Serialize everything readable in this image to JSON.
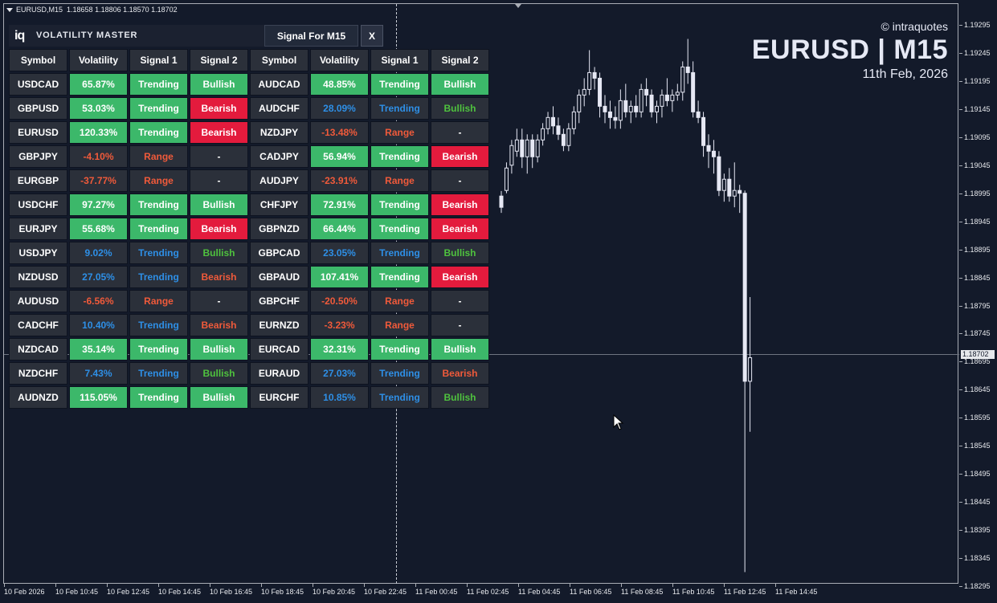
{
  "chart_info": {
    "symbol_timeframe": "EURUSD,M15",
    "ohlc": "1.18658 1.18806 1.18570 1.18702"
  },
  "watermark": {
    "copyright": "© intraquotes",
    "title": "EURUSD | M15",
    "date": "11th Feb, 2026"
  },
  "price_axis": {
    "labels": [
      "1.19295",
      "1.19245",
      "1.19195",
      "1.19145",
      "1.19095",
      "1.19045",
      "1.18995",
      "1.18945",
      "1.18895",
      "1.18845",
      "1.18795",
      "1.18745",
      "1.18695",
      "1.18645",
      "1.18595",
      "1.18545",
      "1.18495",
      "1.18445",
      "1.18395",
      "1.18345",
      "1.18295"
    ],
    "current_price": "1.18702"
  },
  "time_axis": {
    "labels": [
      "10 Feb 2026",
      "10 Feb 10:45",
      "10 Feb 12:45",
      "10 Feb 14:45",
      "10 Feb 16:45",
      "10 Feb 18:45",
      "10 Feb 20:45",
      "10 Feb 22:45",
      "11 Feb 00:45",
      "11 Feb 02:45",
      "11 Feb 04:45",
      "11 Feb 06:45",
      "11 Feb 08:45",
      "11 Feb 10:45",
      "11 Feb 12:45",
      "11 Feb 14:45"
    ]
  },
  "panel": {
    "logo": "iq",
    "title": "VOLATILITY MASTER",
    "signal_tab": "Signal For M15",
    "close_label": "X",
    "headers": [
      "Symbol",
      "Volatility",
      "Signal 1",
      "Signal 2",
      "Symbol",
      "Volatility",
      "Signal 1",
      "Signal 2"
    ],
    "rows": [
      [
        {
          "t": "USDCAD",
          "s": "sym"
        },
        {
          "t": "65.87%",
          "s": "g"
        },
        {
          "t": "Trending",
          "s": "g"
        },
        {
          "t": "Bullish",
          "s": "g"
        },
        {
          "t": "AUDCAD",
          "s": "sym"
        },
        {
          "t": "48.85%",
          "s": "g"
        },
        {
          "t": "Trending",
          "s": "g"
        },
        {
          "t": "Bullish",
          "s": "g"
        }
      ],
      [
        {
          "t": "GBPUSD",
          "s": "sym"
        },
        {
          "t": "53.03%",
          "s": "g"
        },
        {
          "t": "Trending",
          "s": "g"
        },
        {
          "t": "Bearish",
          "s": "r"
        },
        {
          "t": "AUDCHF",
          "s": "sym"
        },
        {
          "t": "28.09%",
          "s": "tb"
        },
        {
          "t": "Trending",
          "s": "tb"
        },
        {
          "t": "Bullish",
          "s": "tg"
        }
      ],
      [
        {
          "t": "EURUSD",
          "s": "sym"
        },
        {
          "t": "120.33%",
          "s": "g"
        },
        {
          "t": "Trending",
          "s": "g"
        },
        {
          "t": "Bearish",
          "s": "r"
        },
        {
          "t": "NZDJPY",
          "s": "sym"
        },
        {
          "t": "-13.48%",
          "s": "tr"
        },
        {
          "t": "Range",
          "s": "tr"
        },
        {
          "t": "-",
          "s": "tw"
        }
      ],
      [
        {
          "t": "GBPJPY",
          "s": "sym"
        },
        {
          "t": "-4.10%",
          "s": "tr"
        },
        {
          "t": "Range",
          "s": "tr"
        },
        {
          "t": "-",
          "s": "tw"
        },
        {
          "t": "CADJPY",
          "s": "sym"
        },
        {
          "t": "56.94%",
          "s": "g"
        },
        {
          "t": "Trending",
          "s": "g"
        },
        {
          "t": "Bearish",
          "s": "r"
        }
      ],
      [
        {
          "t": "EURGBP",
          "s": "sym"
        },
        {
          "t": "-37.77%",
          "s": "tr"
        },
        {
          "t": "Range",
          "s": "tr"
        },
        {
          "t": "-",
          "s": "tw"
        },
        {
          "t": "AUDJPY",
          "s": "sym"
        },
        {
          "t": "-23.91%",
          "s": "tr"
        },
        {
          "t": "Range",
          "s": "tr"
        },
        {
          "t": "-",
          "s": "tw"
        }
      ],
      [
        {
          "t": "USDCHF",
          "s": "sym"
        },
        {
          "t": "97.27%",
          "s": "g"
        },
        {
          "t": "Trending",
          "s": "g"
        },
        {
          "t": "Bullish",
          "s": "g"
        },
        {
          "t": "CHFJPY",
          "s": "sym"
        },
        {
          "t": "72.91%",
          "s": "g"
        },
        {
          "t": "Trending",
          "s": "g"
        },
        {
          "t": "Bearish",
          "s": "r"
        }
      ],
      [
        {
          "t": "EURJPY",
          "s": "sym"
        },
        {
          "t": "55.68%",
          "s": "g"
        },
        {
          "t": "Trending",
          "s": "g"
        },
        {
          "t": "Bearish",
          "s": "r"
        },
        {
          "t": "GBPNZD",
          "s": "sym"
        },
        {
          "t": "66.44%",
          "s": "g"
        },
        {
          "t": "Trending",
          "s": "g"
        },
        {
          "t": "Bearish",
          "s": "r"
        }
      ],
      [
        {
          "t": "USDJPY",
          "s": "sym"
        },
        {
          "t": "9.02%",
          "s": "tb"
        },
        {
          "t": "Trending",
          "s": "tb"
        },
        {
          "t": "Bullish",
          "s": "tg"
        },
        {
          "t": "GBPCAD",
          "s": "sym"
        },
        {
          "t": "23.05%",
          "s": "tb"
        },
        {
          "t": "Trending",
          "s": "tb"
        },
        {
          "t": "Bullish",
          "s": "tg"
        }
      ],
      [
        {
          "t": "NZDUSD",
          "s": "sym"
        },
        {
          "t": "27.05%",
          "s": "tb"
        },
        {
          "t": "Trending",
          "s": "tb"
        },
        {
          "t": "Bearish",
          "s": "tr"
        },
        {
          "t": "GBPAUD",
          "s": "sym"
        },
        {
          "t": "107.41%",
          "s": "g"
        },
        {
          "t": "Trending",
          "s": "g"
        },
        {
          "t": "Bearish",
          "s": "r"
        }
      ],
      [
        {
          "t": "AUDUSD",
          "s": "sym"
        },
        {
          "t": "-6.56%",
          "s": "tr"
        },
        {
          "t": "Range",
          "s": "tr"
        },
        {
          "t": "-",
          "s": "tw"
        },
        {
          "t": "GBPCHF",
          "s": "sym"
        },
        {
          "t": "-20.50%",
          "s": "tr"
        },
        {
          "t": "Range",
          "s": "tr"
        },
        {
          "t": "-",
          "s": "tw"
        }
      ],
      [
        {
          "t": "CADCHF",
          "s": "sym"
        },
        {
          "t": "10.40%",
          "s": "tb"
        },
        {
          "t": "Trending",
          "s": "tb"
        },
        {
          "t": "Bearish",
          "s": "tr"
        },
        {
          "t": "EURNZD",
          "s": "sym"
        },
        {
          "t": "-3.23%",
          "s": "tr"
        },
        {
          "t": "Range",
          "s": "tr"
        },
        {
          "t": "-",
          "s": "tw"
        }
      ],
      [
        {
          "t": "NZDCAD",
          "s": "sym"
        },
        {
          "t": "35.14%",
          "s": "g"
        },
        {
          "t": "Trending",
          "s": "g"
        },
        {
          "t": "Bullish",
          "s": "g"
        },
        {
          "t": "EURCAD",
          "s": "sym"
        },
        {
          "t": "32.31%",
          "s": "g"
        },
        {
          "t": "Trending",
          "s": "g"
        },
        {
          "t": "Bullish",
          "s": "g"
        }
      ],
      [
        {
          "t": "NZDCHF",
          "s": "sym"
        },
        {
          "t": "7.43%",
          "s": "tb"
        },
        {
          "t": "Trending",
          "s": "tb"
        },
        {
          "t": "Bullish",
          "s": "tg"
        },
        {
          "t": "EURAUD",
          "s": "sym"
        },
        {
          "t": "27.03%",
          "s": "tb"
        },
        {
          "t": "Trending",
          "s": "tb"
        },
        {
          "t": "Bearish",
          "s": "tr"
        }
      ],
      [
        {
          "t": "AUDNZD",
          "s": "sym"
        },
        {
          "t": "115.05%",
          "s": "g"
        },
        {
          "t": "Trending",
          "s": "g"
        },
        {
          "t": "Bullish",
          "s": "g"
        },
        {
          "t": "EURCHF",
          "s": "sym"
        },
        {
          "t": "10.85%",
          "s": "tb"
        },
        {
          "t": "Trending",
          "s": "tb"
        },
        {
          "t": "Bullish",
          "s": "tg"
        }
      ]
    ]
  },
  "colors": {
    "background": "#131a2a",
    "candle": "#e6e8f4",
    "cell_green": "#3cb86a",
    "cell_red": "#e31b3d",
    "text_blue": "#2e8fe6",
    "text_red": "#f05a3a",
    "text_green": "#4fc23e"
  }
}
